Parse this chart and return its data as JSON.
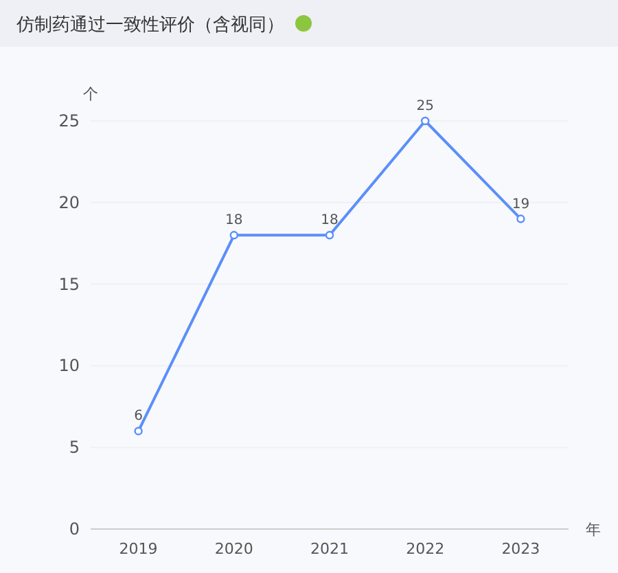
{
  "chart_data": {
    "type": "line",
    "title": "仿制药通过一致性评价（含视同）",
    "ylabel": "个",
    "xlabel": "年",
    "categories": [
      "2019",
      "2020",
      "2021",
      "2022",
      "2023"
    ],
    "series": [
      {
        "color": "#5b8ff9",
        "values": [
          6,
          18,
          18,
          25,
          19
        ]
      }
    ],
    "ylim": [
      0,
      25
    ],
    "yticks": [
      0,
      5,
      10,
      15,
      20,
      25
    ],
    "grid": "y",
    "data_labels": true,
    "marker": "circle",
    "line_style": "solid"
  }
}
